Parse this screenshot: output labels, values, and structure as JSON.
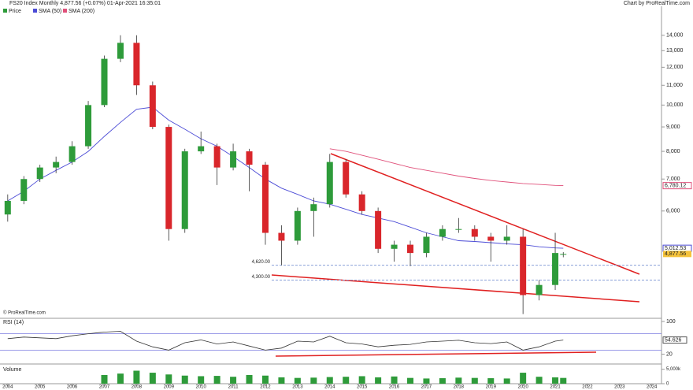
{
  "chart_data": {
    "type": "candlestick",
    "title": "FS20 Index Monthly 4,877.56 (+0.07%) 01-Apr-2021 16:35:01",
    "source": "Chart by ProRealTime.com",
    "watermark": "© ProRealTime.com",
    "x": [
      2004.0,
      2004.5,
      2005.0,
      2005.5,
      2006.0,
      2006.5,
      2007.0,
      2007.5,
      2008.0,
      2008.5,
      2009.0,
      2009.5,
      2010.0,
      2010.5,
      2011.0,
      2011.5,
      2012.0,
      2012.5,
      2013.0,
      2013.5,
      2014.0,
      2014.5,
      2015.0,
      2015.5,
      2016.0,
      2016.5,
      2017.0,
      2017.5,
      2018.0,
      2018.5,
      2019.0,
      2019.5,
      2020.0,
      2020.5,
      2021.0,
      2021.25
    ],
    "open": [
      5900,
      6300,
      7000,
      7400,
      7600,
      8200,
      10000,
      12500,
      13500,
      11000,
      9000,
      5500,
      8000,
      8200,
      7400,
      8000,
      7500,
      5400,
      5200,
      6000,
      6200,
      7600,
      6500,
      6000,
      5000,
      5100,
      4900,
      5300,
      5500,
      5500,
      5300,
      5200,
      5300,
      4000,
      4200,
      4860
    ],
    "high": [
      6500,
      7100,
      7500,
      7800,
      8400,
      10200,
      12700,
      14000,
      14000,
      11200,
      9100,
      8100,
      8800,
      8300,
      8300,
      8100,
      7600,
      5600,
      6100,
      6400,
      7900,
      7700,
      6600,
      6100,
      5200,
      5200,
      5400,
      5600,
      5800,
      5600,
      5400,
      5600,
      5500,
      4300,
      5400,
      4920
    ],
    "low": [
      5700,
      6200,
      6900,
      7200,
      7500,
      8100,
      9900,
      12300,
      10500,
      8900,
      5200,
      5400,
      7900,
      6800,
      7300,
      6600,
      5100,
      4620,
      5100,
      5300,
      6100,
      6400,
      5900,
      4900,
      4700,
      4600,
      4800,
      5200,
      5400,
      5200,
      4700,
      5100,
      3650,
      3900,
      4100,
      4800
    ],
    "close": [
      6300,
      7000,
      7400,
      7600,
      8200,
      10000,
      12500,
      13500,
      11000,
      9000,
      5500,
      8000,
      8200,
      7400,
      8000,
      7500,
      5400,
      5200,
      6000,
      6200,
      7600,
      6500,
      6000,
      5000,
      5100,
      4900,
      5300,
      5500,
      5500,
      5300,
      5200,
      5300,
      4000,
      4200,
      4900,
      4877.56
    ],
    "price_last_label": "4,877.56",
    "up_color": "#2e9b3a",
    "down_color": "#d9262b",
    "legend": [
      "Price",
      "SMA (50)",
      "SMA (200)"
    ],
    "series": [
      {
        "name": "SMA (50)",
        "color": "#4b4bd6",
        "values": [
          6300,
          6600,
          7000,
          7300,
          7600,
          8000,
          8600,
          9200,
          9800,
          9900,
          9300,
          8900,
          8500,
          8200,
          7800,
          7400,
          7000,
          6700,
          6500,
          6300,
          6200,
          6050,
          5900,
          5800,
          5700,
          5550,
          5400,
          5300,
          5200,
          5180,
          5150,
          5120,
          5100,
          5050,
          5020,
          5012.53
        ],
        "last_label": "5,012.53"
      },
      {
        "name": "SMA (200)",
        "color": "#e0507a",
        "values": [
          null,
          null,
          null,
          null,
          null,
          null,
          null,
          null,
          null,
          null,
          null,
          null,
          null,
          null,
          null,
          null,
          null,
          null,
          null,
          null,
          8100,
          8000,
          7850,
          7700,
          7550,
          7400,
          7300,
          7200,
          7100,
          7020,
          6950,
          6900,
          6850,
          6820,
          6790,
          6780.12
        ],
        "last_label": "6,780.12"
      }
    ],
    "levels": [
      {
        "value": 4620,
        "label": "4,620.00"
      },
      {
        "value": 4300,
        "label": "4,300.00"
      }
    ],
    "ylim": [
      3590,
      16100
    ],
    "log_scale": true,
    "yticks": [
      {
        "value": 14000,
        "label": "14,000"
      },
      {
        "value": 13000,
        "label": "13,000"
      },
      {
        "value": 12000,
        "label": "12,000"
      },
      {
        "value": 11000,
        "label": "11,000"
      },
      {
        "value": 10000,
        "label": "10,000"
      },
      {
        "value": 9000,
        "label": "9,000"
      },
      {
        "value": 8000,
        "label": "8,000"
      },
      {
        "value": 7000,
        "label": "7,000"
      },
      {
        "value": 6000,
        "label": "6,000"
      }
    ],
    "xlim": [
      2003.76,
      2024.3
    ],
    "xticks": [
      2004,
      2005,
      2006,
      2007,
      2008,
      2009,
      2010,
      2011,
      2012,
      2013,
      2014,
      2015,
      2016,
      2017,
      2018,
      2019,
      2020,
      2021,
      2022,
      2023,
      2024
    ],
    "rsi": {
      "name": "RSI (14)",
      "color": "#333333",
      "values": [
        58,
        62,
        60,
        58,
        65,
        70,
        74,
        76,
        52,
        38,
        30,
        48,
        55,
        45,
        50,
        40,
        30,
        35,
        52,
        50,
        64,
        48,
        45,
        38,
        42,
        44,
        50,
        52,
        54,
        48,
        46,
        50,
        30,
        38,
        52,
        54.626
      ],
      "last_label": "54.626",
      "ylim": [
        0,
        100
      ],
      "yticks": [
        100,
        20
      ],
      "bands": [
        70,
        30
      ]
    },
    "volume": {
      "name": "Volume",
      "color": "#2e9b3a",
      "values": [
        null,
        null,
        null,
        null,
        null,
        null,
        3000000,
        3500000,
        4500000,
        3800000,
        3200000,
        2800000,
        2600000,
        2700000,
        2400000,
        3000000,
        2800000,
        2200000,
        2000000,
        2100000,
        2300000,
        2400000,
        2600000,
        2200000,
        2500000,
        2000000,
        1800000,
        1900000,
        2100000,
        2000000,
        1900000,
        1800000,
        3800000,
        2400000,
        2200000,
        2000000
      ],
      "ylim": [
        0,
        6000000
      ],
      "yticks": [
        {
          "value": 5000000,
          "label": "5,000k"
        },
        0
      ]
    }
  }
}
